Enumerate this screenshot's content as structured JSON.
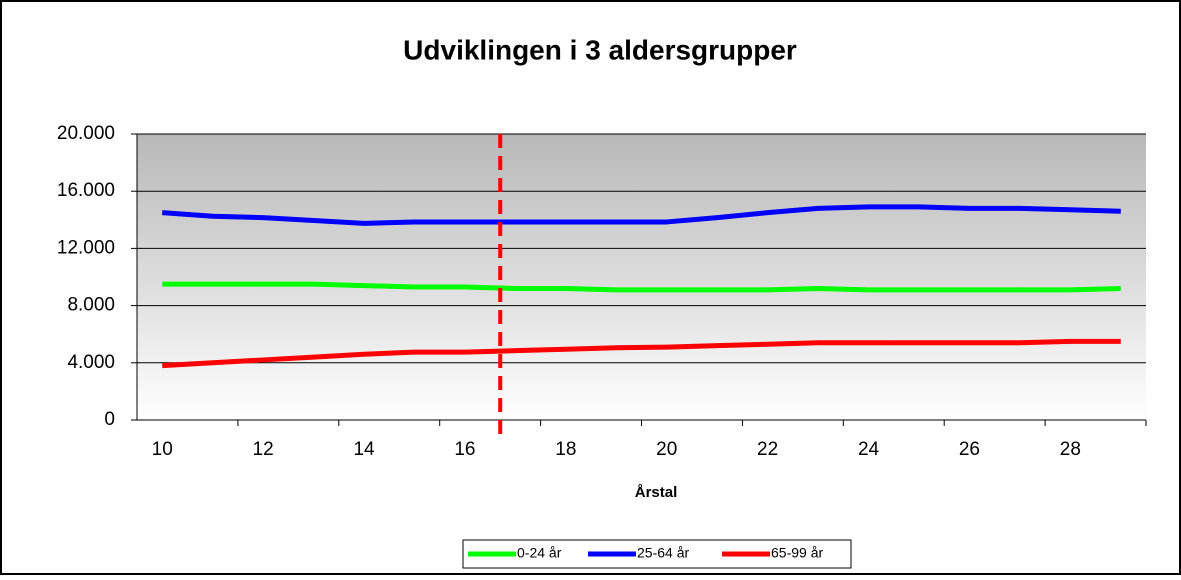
{
  "chart_data": {
    "type": "line",
    "title": "Udviklingen i 3 aldersgrupper",
    "x_label": "Årstal",
    "categories": [
      "10",
      null,
      "12",
      null,
      "14",
      null,
      "16",
      null,
      "18",
      null,
      "20",
      null,
      "22",
      null,
      "24",
      null,
      "26",
      null,
      "28",
      null
    ],
    "series": [
      {
        "name": "0-24 år",
        "color": "#00ff00",
        "values": [
          9500,
          9500,
          9500,
          9500,
          9400,
          9300,
          9300,
          9200,
          9200,
          9100,
          9100,
          9100,
          9100,
          9200,
          9100,
          9100,
          9100,
          9100,
          9100,
          9200
        ]
      },
      {
        "name": "25-64 år",
        "color": "#0000ff",
        "values": [
          14500,
          14250,
          14150,
          13950,
          13750,
          13850,
          13850,
          13850,
          13850,
          13850,
          13850,
          14150,
          14500,
          14800,
          14900,
          14900,
          14800,
          14800,
          14700,
          14600
        ]
      },
      {
        "name": "65-99 år",
        "color": "#ff0000",
        "values": [
          3800,
          4000,
          4200,
          4400,
          4600,
          4750,
          4750,
          4850,
          4950,
          5050,
          5100,
          5200,
          5300,
          5400,
          5400,
          5400,
          5400,
          5400,
          5500,
          5500
        ]
      }
    ],
    "ylim": [
      0,
      20000
    ],
    "yticks": [
      0,
      {
        "value": 4000,
        "label": "4.000"
      },
      {
        "value": 8000,
        "label": "8.000"
      },
      {
        "value": 12000,
        "label": "12.000"
      },
      {
        "value": 16000,
        "label": "16.000"
      },
      {
        "value": 20000,
        "label": "20.000"
      }
    ],
    "grid": true,
    "legend": "bottom",
    "reference_line": {
      "x": 6.7,
      "color": "#ff0000"
    }
  }
}
